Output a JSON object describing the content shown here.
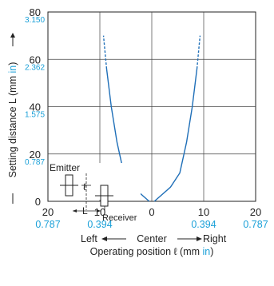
{
  "chart_data": {
    "type": "line",
    "title": "",
    "ylabel": {
      "main": "Setting distance L (mm ",
      "unit_in": "in",
      "close": ")"
    },
    "xlabel": {
      "main": "Operating position ℓ (mm ",
      "unit_in": "in",
      "close": ")"
    },
    "direction_labels": {
      "left": "Left",
      "center": "Center",
      "right": "Right"
    },
    "xlim": [
      -20,
      20
    ],
    "ylim": [
      0,
      80
    ],
    "grid": true,
    "x_ticks": [
      {
        "value": -20,
        "label": "20",
        "inch": "0.787"
      },
      {
        "value": -10,
        "label": "10",
        "inch": "0.394"
      },
      {
        "value": 0,
        "label": "0",
        "inch": ""
      },
      {
        "value": 10,
        "label": "10",
        "inch": "0.394"
      },
      {
        "value": 20,
        "label": "20",
        "inch": "0.787"
      }
    ],
    "y_ticks": [
      {
        "value": 0,
        "label": "0",
        "inch": ""
      },
      {
        "value": 20,
        "label": "20",
        "inch": "0.787"
      },
      {
        "value": 40,
        "label": "40",
        "inch": "1.575"
      },
      {
        "value": 60,
        "label": "60",
        "inch": "2.362"
      },
      {
        "value": 80,
        "label": "80",
        "inch": "3.150"
      }
    ],
    "series": [
      {
        "solid": [
          {
            "x": -0.5,
            "y": 0
          },
          {
            "x": -3.6,
            "y": 6
          },
          {
            "x": -5.4,
            "y": 12
          },
          {
            "x": -6.7,
            "y": 25
          },
          {
            "x": -7.8,
            "y": 40
          },
          {
            "x": -8.7,
            "y": 56
          }
        ],
        "dashed": [
          {
            "x": -8.7,
            "y": 56
          },
          {
            "x": -9.3,
            "y": 70
          }
        ]
      },
      {
        "solid": [
          {
            "x": 0.5,
            "y": 0
          },
          {
            "x": 3.6,
            "y": 6
          },
          {
            "x": 5.4,
            "y": 12
          },
          {
            "x": 6.7,
            "y": 25
          },
          {
            "x": 7.8,
            "y": 40
          },
          {
            "x": 8.7,
            "y": 56
          }
        ],
        "dashed": [
          {
            "x": 8.7,
            "y": 56
          },
          {
            "x": 9.3,
            "y": 70
          }
        ]
      }
    ],
    "inset": {
      "emitter": "Emitter",
      "receiver": "Receiver",
      "L": "L",
      "l": "ℓ"
    },
    "colors": {
      "curve": "#1f6fb8",
      "inch": "#1aa0d8",
      "axis": "#222222",
      "grid": "#444444"
    }
  }
}
